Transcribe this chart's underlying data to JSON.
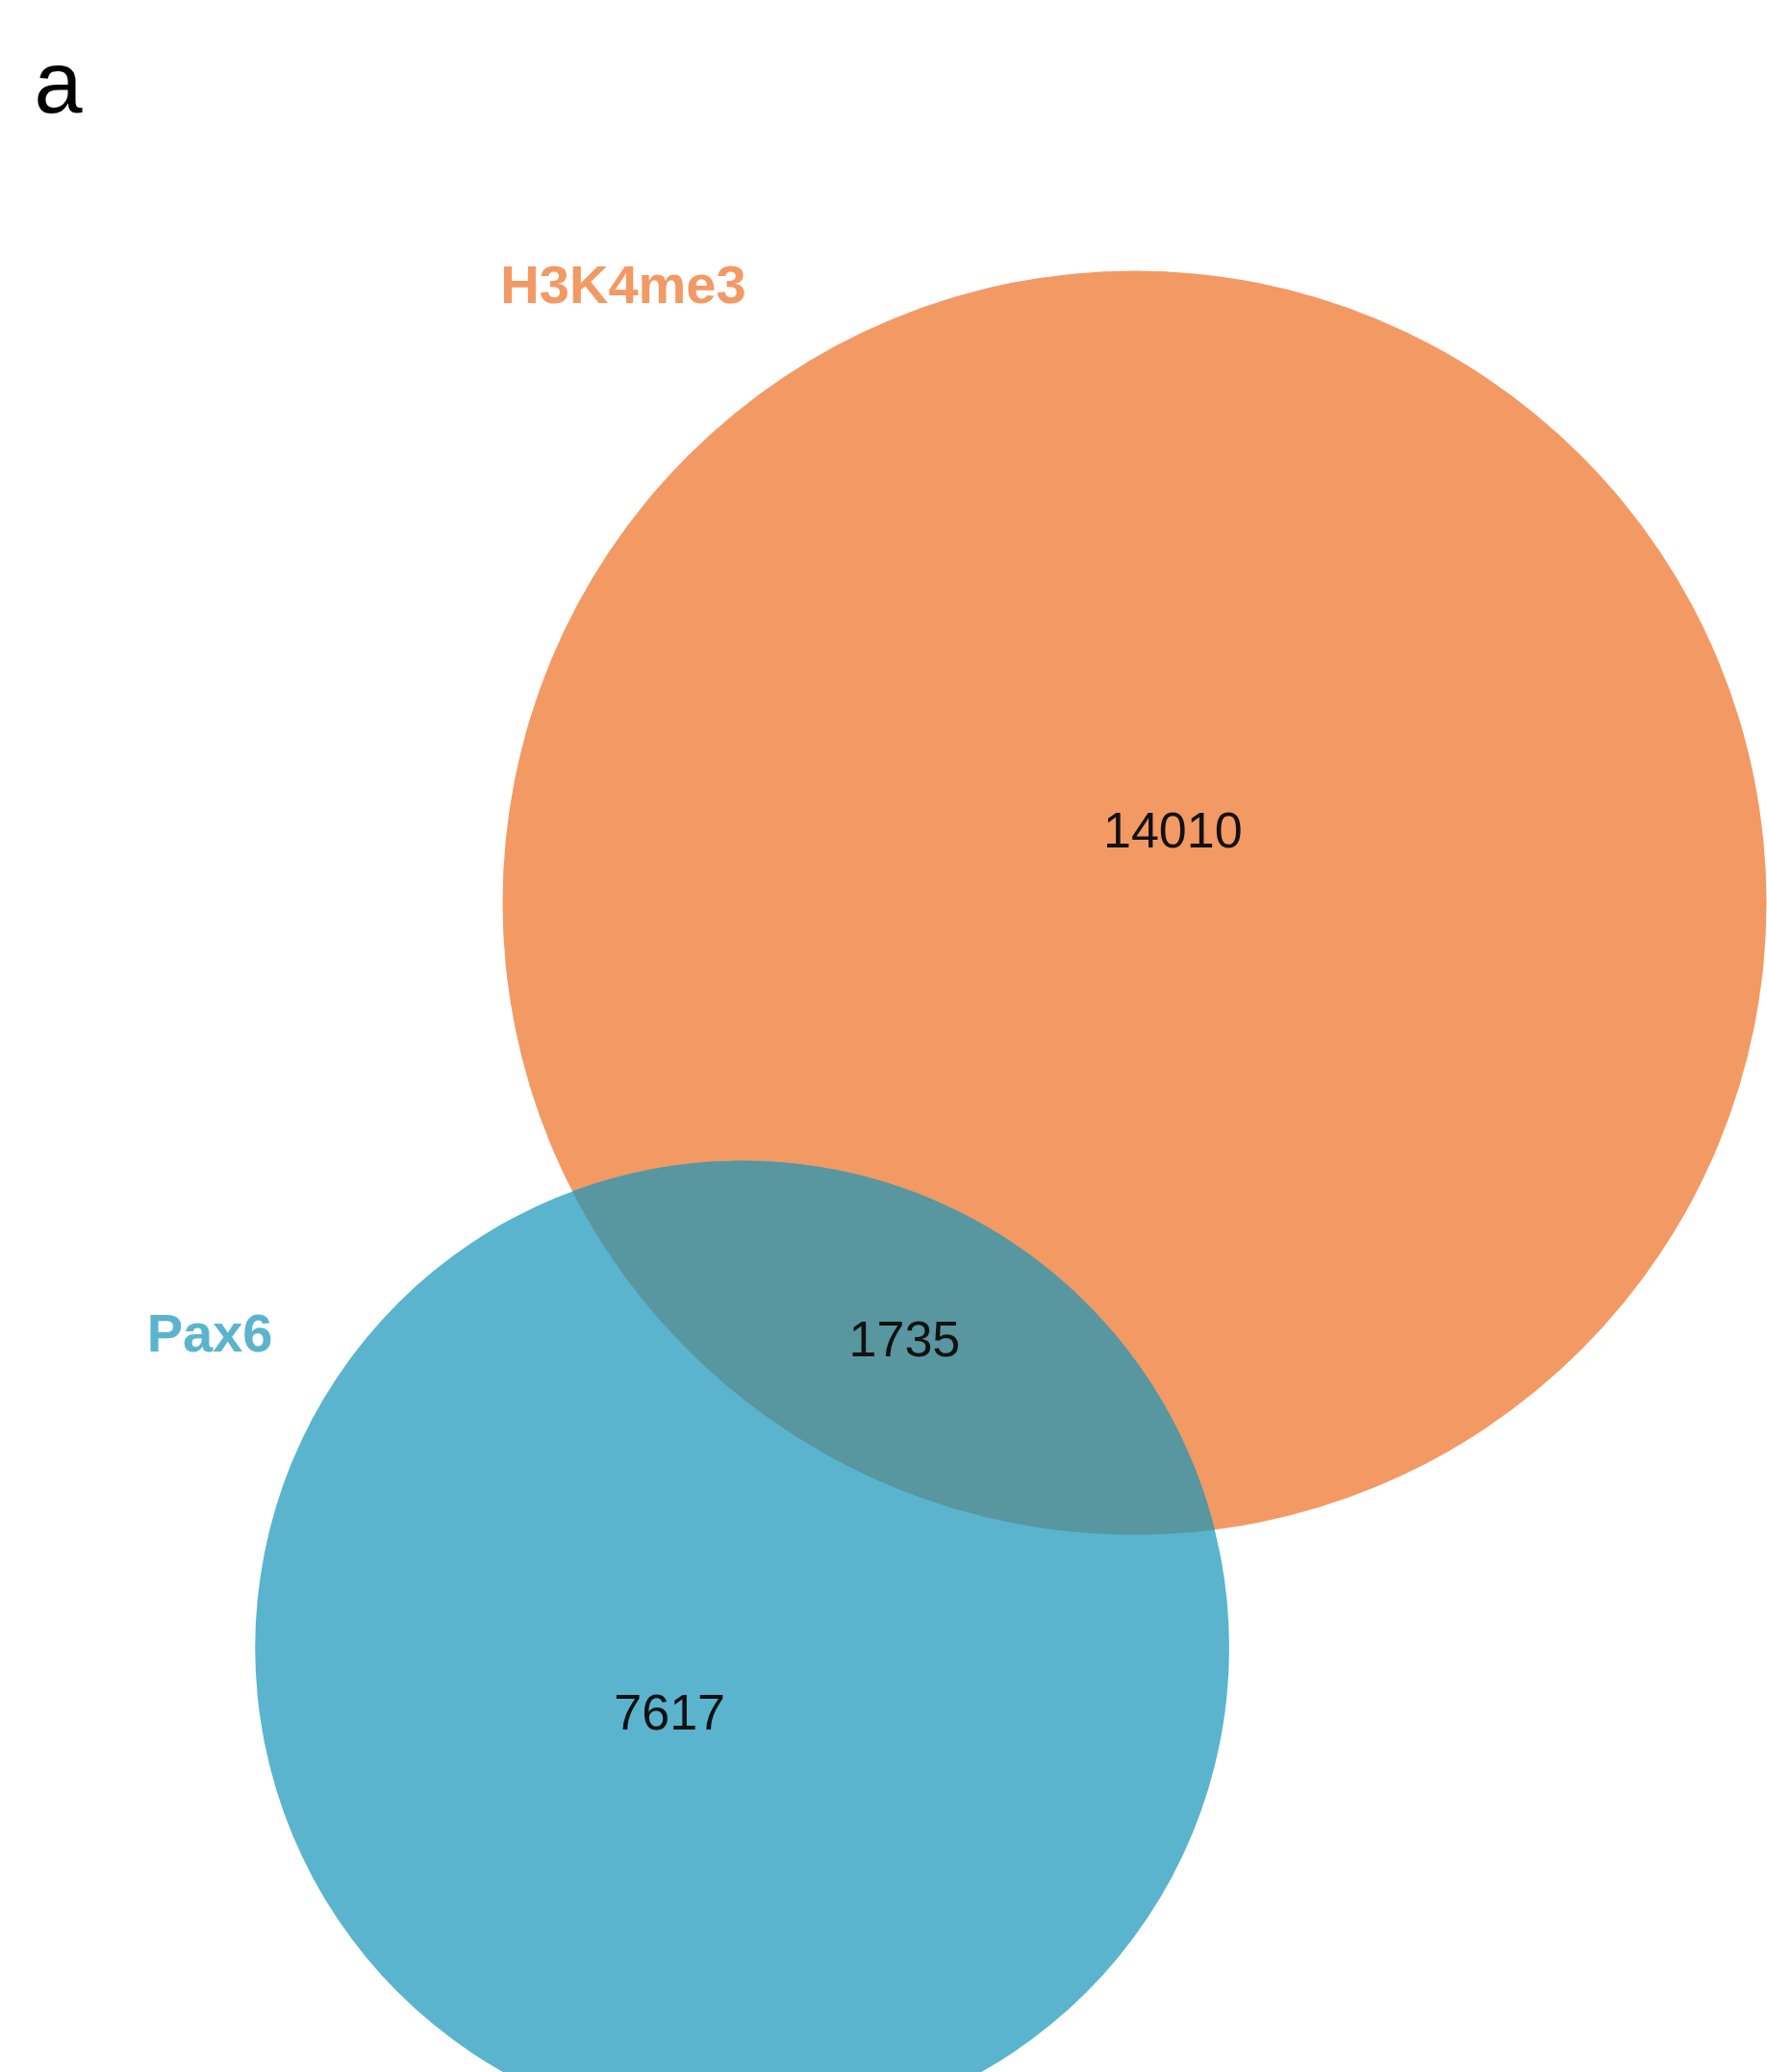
{
  "chart_data": {
    "type": "other",
    "title": "a",
    "categories": [
      "H3K4me3",
      null,
      "Pax6"
    ],
    "values": [
      14010,
      1735,
      7617
    ],
    "colors": [
      "#f39964",
      "#5896a0",
      "#5ab4cd"
    ],
    "data_labels": true
  }
}
